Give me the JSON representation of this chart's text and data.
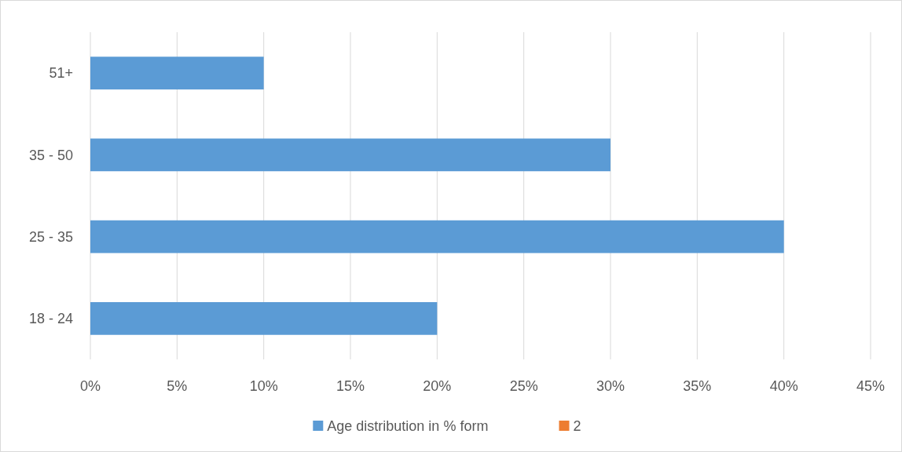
{
  "chart_data": {
    "type": "bar",
    "orientation": "horizontal",
    "categories": [
      "51+",
      "35 - 50",
      "25 - 35",
      "18 - 24"
    ],
    "series": [
      {
        "name": "Age distribution in % form",
        "color": "#5b9bd5",
        "values": [
          10,
          30,
          40,
          20
        ]
      },
      {
        "name": "2",
        "color": "#ed7d31",
        "values": [
          null,
          null,
          null,
          null
        ]
      }
    ],
    "xlim": [
      0,
      45
    ],
    "xticks": [
      {
        "value": 0,
        "label": "0%"
      },
      {
        "value": 5,
        "label": "5%"
      },
      {
        "value": 10,
        "label": "10%"
      },
      {
        "value": 15,
        "label": "15%"
      },
      {
        "value": 20,
        "label": "20%"
      },
      {
        "value": 25,
        "label": "25%"
      },
      {
        "value": 30,
        "label": "30%"
      },
      {
        "value": 35,
        "label": "35%"
      },
      {
        "value": 40,
        "label": "40%"
      },
      {
        "value": 45,
        "label": "45%"
      }
    ],
    "grid": "x",
    "legend": "bottom"
  }
}
